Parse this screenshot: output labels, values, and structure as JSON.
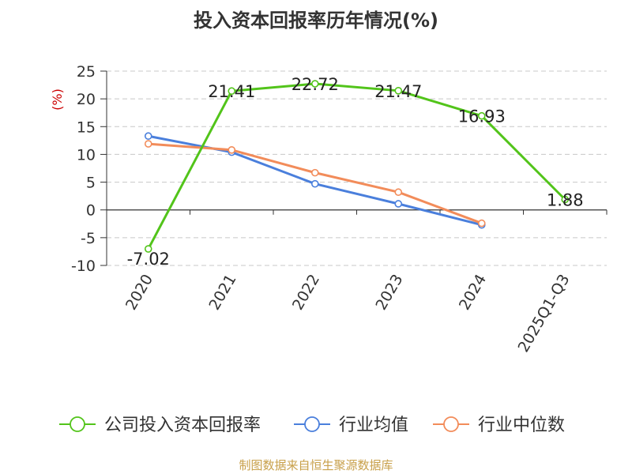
{
  "chart_data": {
    "type": "line",
    "title": "投入资本回报率历年情况(%)",
    "ylabel": "(%)",
    "categories": [
      "2020",
      "2021",
      "2022",
      "2023",
      "2024",
      "2025Q1-Q3"
    ],
    "ylim": [
      -10,
      25
    ],
    "yticks": [
      25,
      20,
      15,
      10,
      5,
      0,
      -5,
      -10
    ],
    "grid": true,
    "legend_position": "bottom",
    "series": [
      {
        "name": "公司投入资本回报率",
        "color": "#52c41a",
        "values": [
          -7.02,
          21.41,
          22.72,
          21.47,
          16.93,
          1.88
        ],
        "labels": [
          "-7.02",
          "21.41",
          "22.72",
          "21.47",
          "16.93",
          "1.88"
        ]
      },
      {
        "name": "行业均值",
        "color": "#4a7fdc",
        "values": [
          13.3,
          10.4,
          4.7,
          1.1,
          -2.7,
          null
        ]
      },
      {
        "name": "行业中位数",
        "color": "#f28c5a",
        "values": [
          11.9,
          10.8,
          6.7,
          3.2,
          -2.4,
          null
        ]
      }
    ]
  },
  "source": "制图数据来自恒生聚源数据库"
}
